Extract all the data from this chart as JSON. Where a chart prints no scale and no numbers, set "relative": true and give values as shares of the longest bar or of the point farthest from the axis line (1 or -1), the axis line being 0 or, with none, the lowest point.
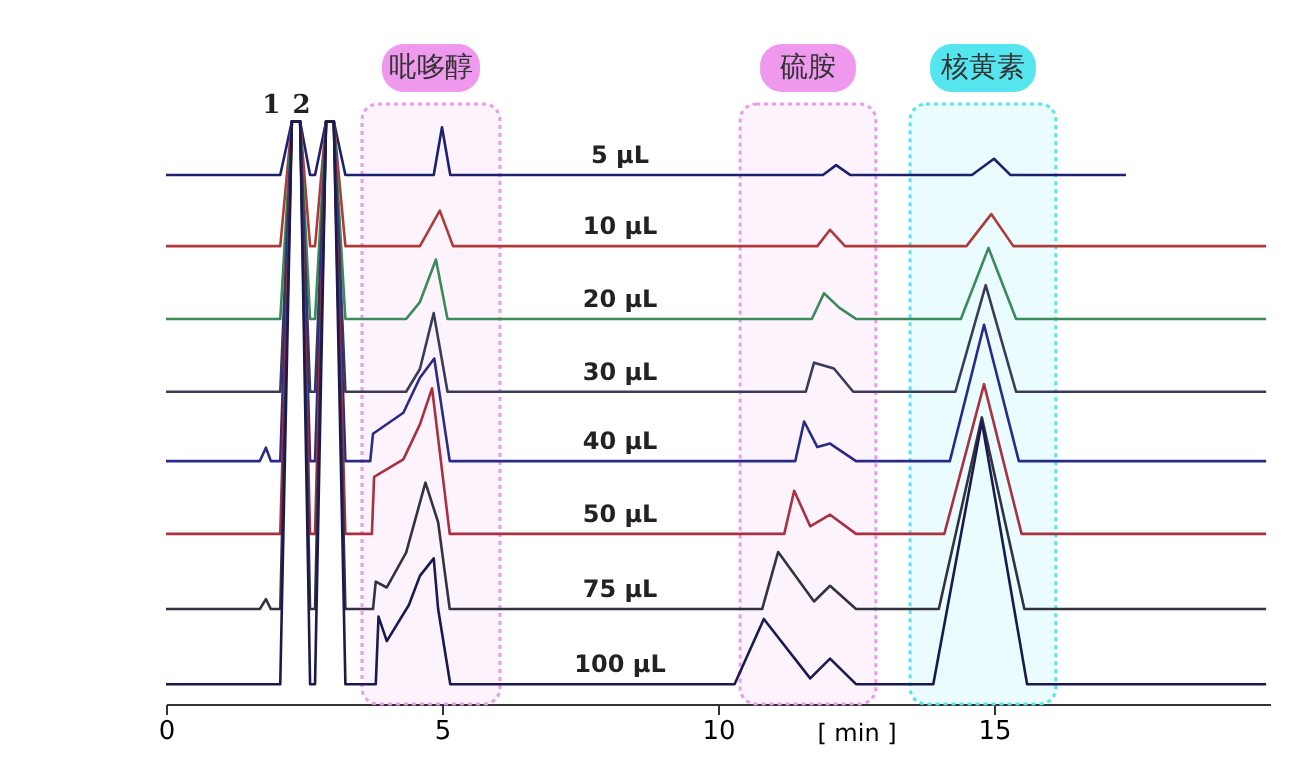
{
  "chart_data": {
    "type": "line",
    "relative": true,
    "xlabel": "[ min ]",
    "xlim": [
      0,
      20
    ],
    "xticks": [
      0,
      5,
      10,
      15
    ],
    "series": [
      {
        "name": "5 μL",
        "color": "#1f1f70",
        "x": [
          0,
          2.07,
          2.28,
          2.43,
          2.61,
          2.7,
          2.9,
          3.04,
          3.25,
          4.85,
          5.0,
          5.15,
          11.9,
          12.14,
          12.4,
          14.6,
          15.0,
          15.3,
          17.39
        ],
        "values": [
          0.908,
          0.908,
          1,
          1,
          0.908,
          0.908,
          1,
          1,
          0.908,
          0.908,
          0.99,
          0.908,
          0.908,
          0.925,
          0.908,
          0.908,
          0.936,
          0.908,
          0.908
        ]
      },
      {
        "name": "10 μL",
        "color": "#b03a3a",
        "x": [
          0,
          2.07,
          2.28,
          2.43,
          2.61,
          2.7,
          2.9,
          3.04,
          3.25,
          4.6,
          4.96,
          5.2,
          11.8,
          12.03,
          12.3,
          14.5,
          14.95,
          15.35,
          19.93
        ],
        "values": [
          0.786,
          0.786,
          1,
          1,
          0.786,
          0.786,
          1,
          1,
          0.786,
          0.786,
          0.847,
          0.786,
          0.786,
          0.814,
          0.786,
          0.786,
          0.841,
          0.786,
          0.786
        ]
      },
      {
        "name": "20 μL",
        "color": "#3a8a5a",
        "x": [
          0,
          2.07,
          2.28,
          2.43,
          2.61,
          2.7,
          2.9,
          3.04,
          3.25,
          4.35,
          4.6,
          4.89,
          5.1,
          11.7,
          11.92,
          12.2,
          12.5,
          14.4,
          14.9,
          15.4,
          19.93
        ],
        "values": [
          0.661,
          0.661,
          1,
          1,
          0.661,
          0.661,
          1,
          1,
          0.661,
          0.661,
          0.69,
          0.763,
          0.661,
          0.661,
          0.705,
          0.68,
          0.661,
          0.661,
          0.783,
          0.661,
          0.661
        ]
      },
      {
        "name": "30 μL",
        "color": "#3a3a5a",
        "x": [
          0,
          2.07,
          2.28,
          2.43,
          2.61,
          2.7,
          2.9,
          3.04,
          3.25,
          4.35,
          4.6,
          4.85,
          5.1,
          11.59,
          11.74,
          12.1,
          12.45,
          14.3,
          14.85,
          15.4,
          19.93
        ],
        "values": [
          0.536,
          0.536,
          1,
          1,
          0.536,
          0.536,
          1,
          1,
          0.536,
          0.536,
          0.575,
          0.671,
          0.536,
          0.536,
          0.586,
          0.576,
          0.536,
          0.536,
          0.719,
          0.536,
          0.536
        ]
      },
      {
        "name": "40 μL",
        "color": "#2a2a88",
        "x": [
          0,
          1.7,
          1.81,
          1.9,
          2.07,
          2.28,
          2.43,
          2.61,
          2.7,
          2.9,
          3.04,
          3.25,
          3.7,
          3.75,
          4.3,
          4.6,
          4.86,
          5.14,
          11.4,
          11.56,
          11.8,
          12.03,
          12.5,
          14.2,
          14.82,
          15.45,
          19.93
        ],
        "values": [
          0.417,
          0.417,
          0.44,
          0.417,
          0.417,
          1,
          1,
          0.417,
          0.417,
          1,
          1,
          0.417,
          0.417,
          0.464,
          0.5,
          0.56,
          0.593,
          0.417,
          0.417,
          0.485,
          0.441,
          0.447,
          0.417,
          0.417,
          0.651,
          0.417,
          0.417
        ]
      },
      {
        "name": "50 μL",
        "color": "#a83040",
        "x": [
          0,
          2.07,
          2.28,
          2.43,
          2.61,
          2.7,
          2.9,
          3.04,
          3.25,
          3.73,
          3.77,
          4.3,
          4.6,
          4.82,
          5.14,
          11.2,
          11.38,
          11.67,
          12.03,
          12.5,
          14.1,
          14.82,
          15.5,
          19.93
        ],
        "values": [
          0.292,
          0.292,
          1,
          1,
          0.292,
          0.292,
          1,
          1,
          0.292,
          0.292,
          0.39,
          0.42,
          0.48,
          0.542,
          0.292,
          0.292,
          0.366,
          0.305,
          0.325,
          0.292,
          0.292,
          0.549,
          0.292,
          0.292
        ]
      },
      {
        "name": "75 μL",
        "color": "#333340",
        "x": [
          0,
          1.7,
          1.81,
          1.9,
          2.07,
          2.28,
          2.43,
          2.61,
          2.7,
          2.9,
          3.04,
          3.25,
          3.75,
          3.8,
          4.0,
          4.35,
          4.7,
          4.93,
          5.14,
          10.8,
          11.09,
          11.74,
          12.03,
          12.5,
          14.0,
          14.78,
          15.55,
          19.93
        ],
        "values": [
          0.163,
          0.163,
          0.18,
          0.163,
          0.163,
          1,
          1,
          0.163,
          0.163,
          1,
          1,
          0.163,
          0.163,
          0.21,
          0.2,
          0.26,
          0.38,
          0.312,
          0.163,
          0.163,
          0.261,
          0.176,
          0.203,
          0.163,
          0.163,
          0.492,
          0.163,
          0.163
        ]
      },
      {
        "name": "100 μL",
        "color": "#1a1a50",
        "x": [
          0,
          2.07,
          2.28,
          2.43,
          2.61,
          2.7,
          2.9,
          3.04,
          3.25,
          3.8,
          3.85,
          4.0,
          4.4,
          4.6,
          4.85,
          4.93,
          5.15,
          10.3,
          10.83,
          11.67,
          12.03,
          12.5,
          13.9,
          14.78,
          15.6,
          19.93
        ],
        "values": [
          0.034,
          0.034,
          1,
          1,
          0.034,
          0.034,
          1,
          1,
          0.034,
          0.034,
          0.15,
          0.108,
          0.17,
          0.22,
          0.25,
          0.163,
          0.034,
          0.034,
          0.146,
          0.044,
          0.078,
          0.034,
          0.034,
          0.485,
          0.034,
          0.034
        ]
      }
    ],
    "bands": [
      {
        "axis": "x",
        "from": 3.55,
        "to": 6.05,
        "label": "吡哆醇",
        "color": "#ee99ee"
      },
      {
        "axis": "x",
        "from": 10.4,
        "to": 12.86,
        "label": "硫胺",
        "color": "#ee99ee"
      },
      {
        "axis": "x",
        "from": 13.48,
        "to": 16.12,
        "label": "核黄素",
        "color": "#55e5ee"
      }
    ],
    "annotations": [
      {
        "text": "1",
        "x": 2.07,
        "y": 1
      },
      {
        "text": "2",
        "x": 2.62,
        "y": 1
      }
    ]
  }
}
